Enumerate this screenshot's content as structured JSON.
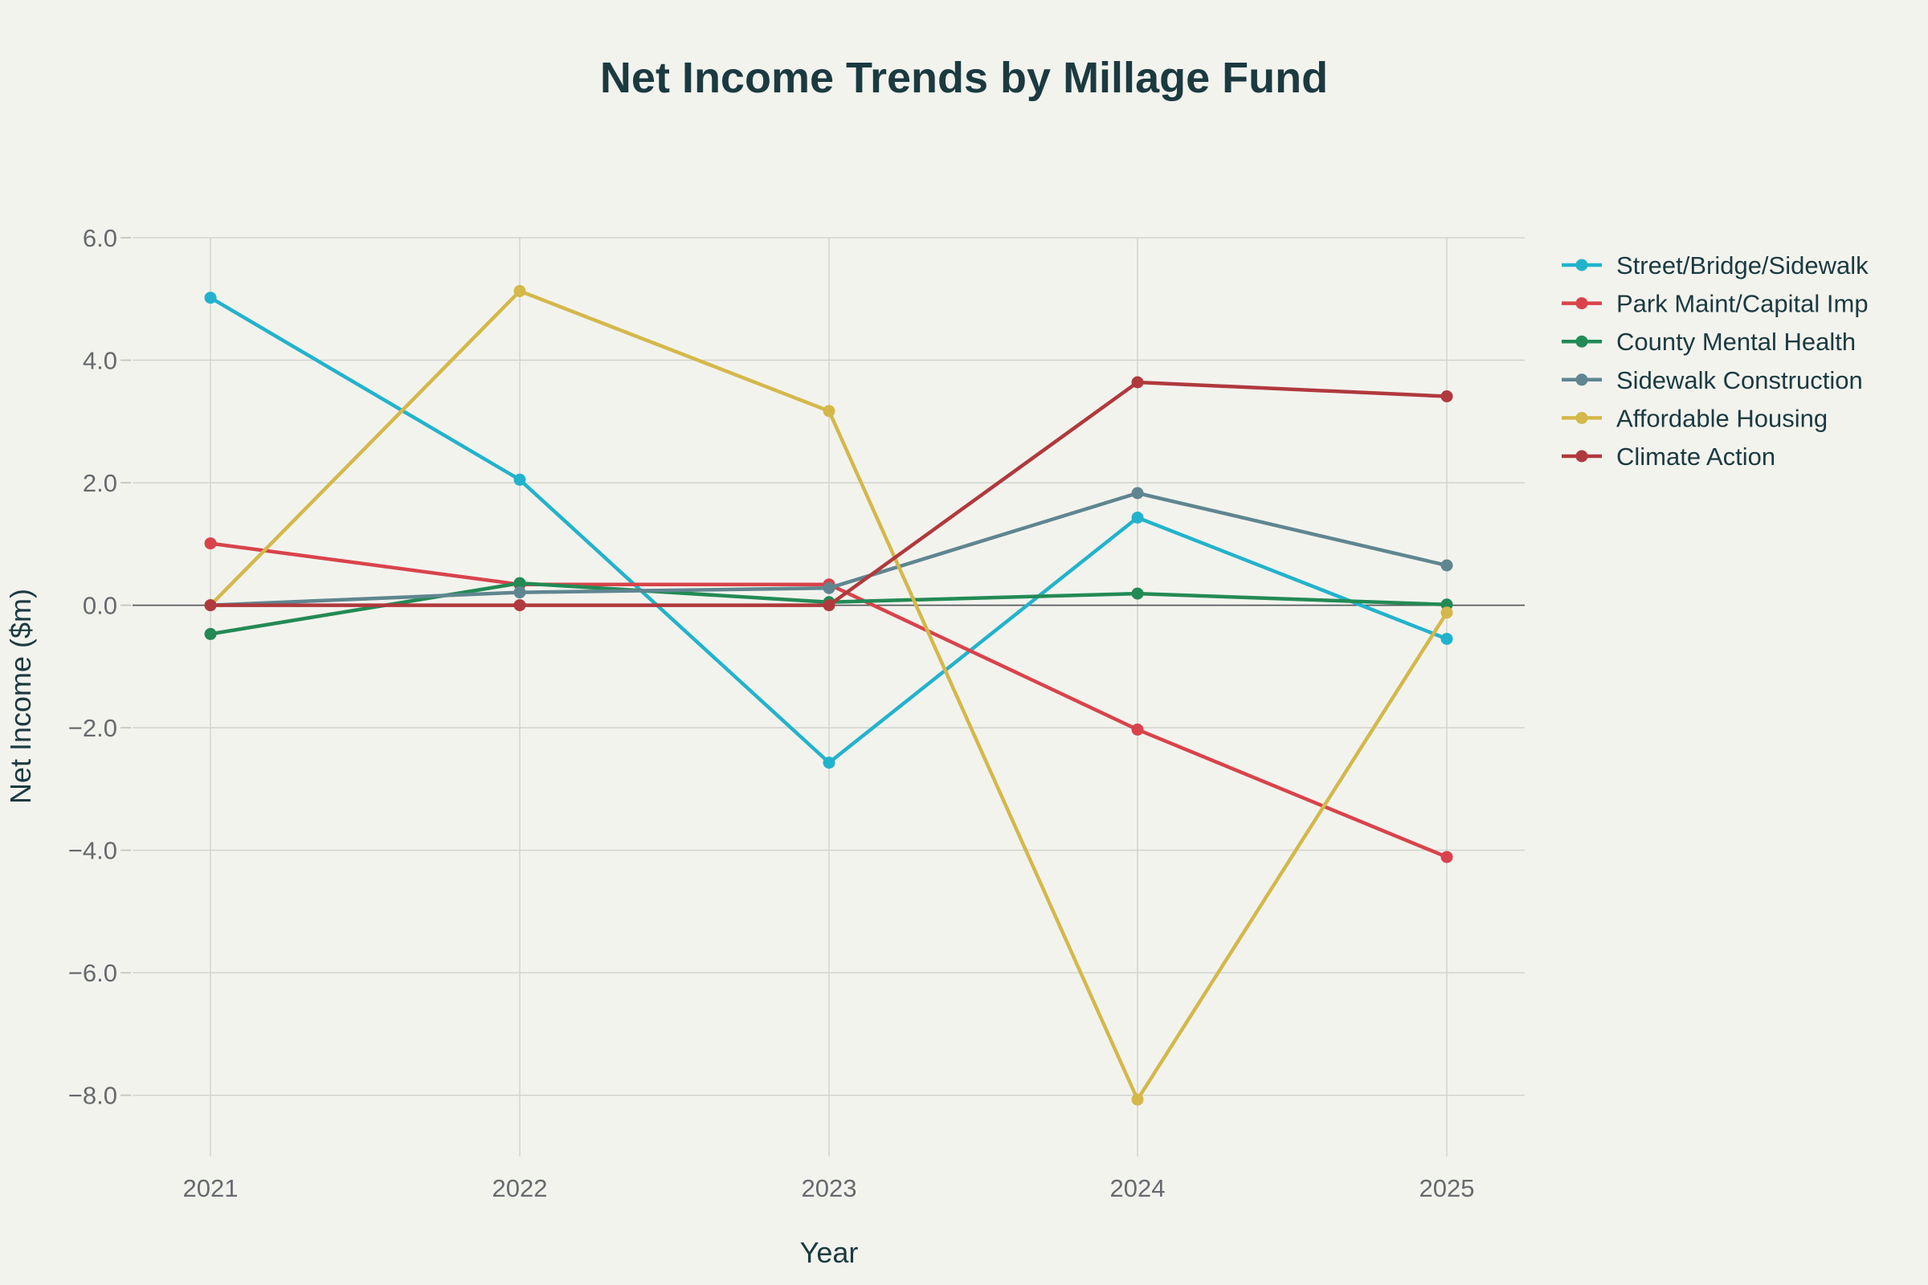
{
  "chart_data": {
    "type": "line",
    "title": "Net Income Trends by Millage Fund",
    "xlabel": "Year",
    "ylabel": "Net Income ($m)",
    "categories": [
      "2021",
      "2022",
      "2023",
      "2024",
      "2025"
    ],
    "ylim": [
      -9.0,
      6.0
    ],
    "yticks": [
      6.0,
      4.0,
      2.0,
      0.0,
      -2.0,
      -4.0,
      -6.0,
      -8.0
    ],
    "ytick_labels": [
      "6.0",
      "4.0",
      "2.0",
      "0.0",
      "−2.0",
      "−4.0",
      "−6.0",
      "−8.0"
    ],
    "grid": true,
    "legend_position": "top-right",
    "series": [
      {
        "name": "Street/Bridge/Sidewalk",
        "color": "#22b3cc",
        "values": [
          5.02,
          2.05,
          -2.57,
          1.43,
          -0.55
        ]
      },
      {
        "name": "Park Maint/Capital Imp",
        "color": "#d9434b",
        "values": [
          1.01,
          0.34,
          0.34,
          -2.03,
          -4.11
        ]
      },
      {
        "name": "County Mental Health",
        "color": "#238a55",
        "values": [
          -0.47,
          0.36,
          0.05,
          0.19,
          0.01
        ]
      },
      {
        "name": "Sidewalk Construction",
        "color": "#5f8690",
        "values": [
          0.0,
          0.21,
          0.28,
          1.83,
          0.65
        ]
      },
      {
        "name": "Affordable Housing",
        "color": "#d4b84a",
        "values": [
          0.0,
          5.13,
          3.17,
          -8.07,
          -0.12
        ]
      },
      {
        "name": "Climate Action",
        "color": "#b0393d",
        "values": [
          0.0,
          0.0,
          0.0,
          3.64,
          3.41
        ]
      }
    ]
  }
}
